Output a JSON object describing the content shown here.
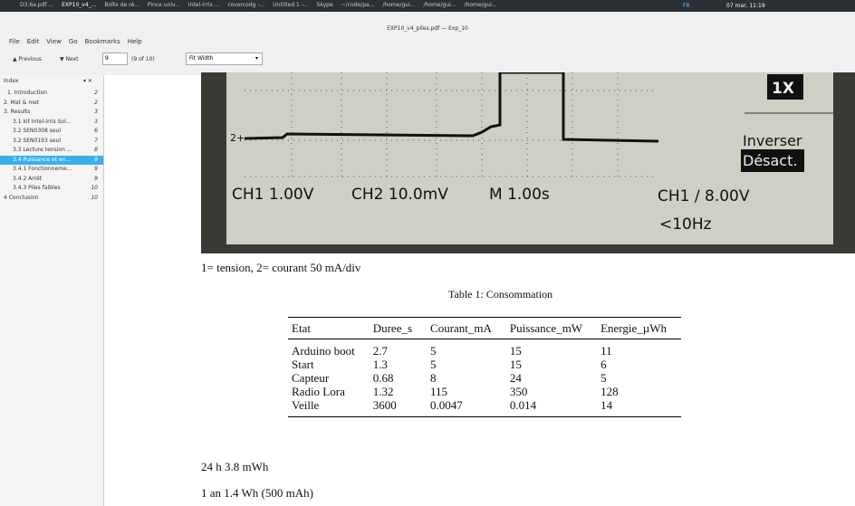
{
  "taskbar": {
    "items": [
      "D3.6a.pdf ...",
      "EXP10_v4_...",
      "Boîte de ré...",
      "Pince univ...",
      "Intel-Irris ...",
      "covercodg -...",
      "Untitled 1 -...",
      "Skype",
      "~/code/pa...",
      "/home/gui...",
      "/home/gui...",
      "/home/gui..."
    ],
    "lang": "FR",
    "clock": "07 mar, 11:19"
  },
  "window": {
    "title": "EXP10_v4_piles.pdf — Exp_10",
    "menu": [
      "File",
      "Edit",
      "View",
      "Go",
      "Bookmarks",
      "Help"
    ],
    "toolbar": {
      "previous": "Previous",
      "next": "Next",
      "page": "9",
      "page_count": "(9 of 10)",
      "zoom": "Fit Width"
    }
  },
  "sidebar": {
    "title": "Index",
    "items": [
      {
        "label": "1. Introduction",
        "page": "2"
      },
      {
        "label": "2. Mat & met",
        "page": "2"
      },
      {
        "label": "3. Results",
        "page": "3"
      },
      {
        "label": "3.1 kit Intel-Irris Sol...",
        "page": "3"
      },
      {
        "label": "3.2 SEN0308 seul",
        "page": "6"
      },
      {
        "label": "3.2 SEN0193 seul",
        "page": "7"
      },
      {
        "label": "3.3 Lecture tension ...",
        "page": "8"
      },
      {
        "label": "3.4 Puissance et en...",
        "page": "9"
      },
      {
        "label": "3.4.1 Fonctionneme...",
        "page": "9"
      },
      {
        "label": "3.4.2 Arrêt",
        "page": "9"
      },
      {
        "label": "3.4.3 Piles faibles",
        "page": "10"
      },
      {
        "label": "4 Conclusion",
        "page": "10"
      }
    ]
  },
  "scope": {
    "probe": "1X",
    "invert": "Inverser",
    "invert_state": "Désact.",
    "ch1": "CH1 1.00V",
    "ch2": "CH2 10.0mV",
    "time": "M 1.00s",
    "trigger": "CH1 ∕ 8.00V",
    "freq": "<10Hz",
    "marker": "2+"
  },
  "document": {
    "caption": "1= tension, 2= courant 50 mA/div",
    "table": {
      "title": "Table 1: Consommation",
      "header": [
        "Etat",
        "Duree_s",
        "Courant_mA",
        "Puissance_mW",
        "Energie_µWh"
      ],
      "rows": [
        [
          "Arduino boot",
          "2.7",
          "5",
          "15",
          "11"
        ],
        [
          "Start",
          "1.3",
          "5",
          "15",
          "6"
        ],
        [
          "Capteur",
          "0.68",
          "8",
          "24",
          "5"
        ],
        [
          "Radio Lora",
          "1.32",
          "115",
          "350",
          "128"
        ],
        [
          "Veille",
          "3600",
          "0.0047",
          "0.014",
          "14"
        ]
      ]
    },
    "line1": "24 h 3.8 mWh",
    "line2": "1 an 1.4 Wh (500 mAh)"
  }
}
